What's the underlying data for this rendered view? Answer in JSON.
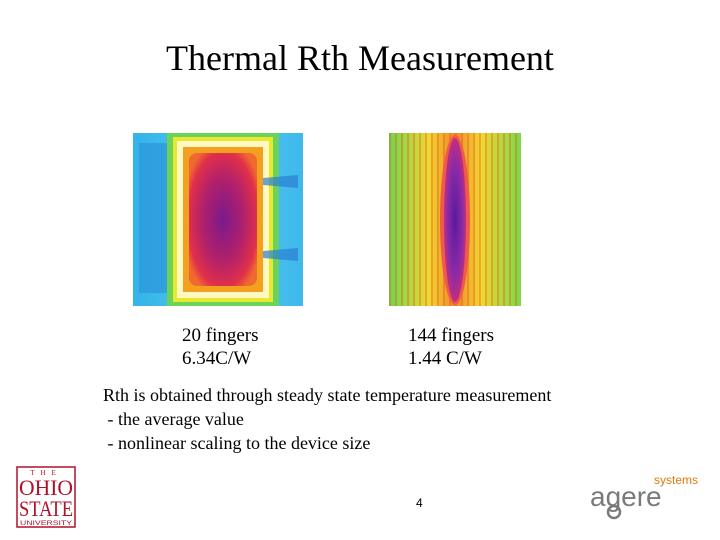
{
  "title": "Thermal Rth Measurement",
  "figures": [
    {
      "caption": [
        "20 fingers",
        "6.34C/W"
      ]
    },
    {
      "caption": [
        "144 fingers",
        "1.44 C/W"
      ]
    }
  ],
  "body": [
    "Rth is obtained through steady state temperature measurement",
    " - the average value",
    " - nonlinear scaling to the device size"
  ],
  "page_number": "4",
  "logos": {
    "university": [
      "THE",
      "OHIO",
      "STATE",
      "UNIVERSITY"
    ],
    "company": [
      "agere",
      "systems"
    ]
  }
}
